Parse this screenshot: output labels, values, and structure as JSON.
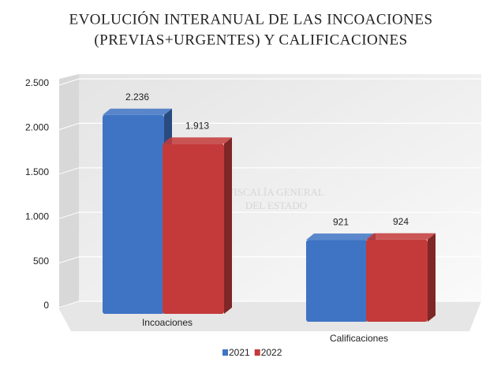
{
  "chart_data": {
    "type": "bar3d",
    "title": [
      "EVOLUCIÓN INTERANUAL DE LAS INCOACIONES",
      "(PREVIAS+URGENTES) Y CALIFICACIONES"
    ],
    "watermark": [
      "FISCALÍA GENERAL",
      "DEL ESTADO"
    ],
    "categories": [
      "Incoaciones",
      "Calificaciones"
    ],
    "series": [
      {
        "name": "2021",
        "color": "#3f74c4",
        "values": [
          2236,
          921
        ],
        "value_labels": [
          "2.236",
          "921"
        ]
      },
      {
        "name": "2022",
        "color": "#c43a3a",
        "values": [
          1913,
          924
        ],
        "value_labels": [
          "1.913",
          "924"
        ]
      }
    ],
    "ylim": [
      0,
      2500
    ],
    "yticks": [
      0,
      500,
      {
        "value": 1000,
        "label": "1.000"
      },
      {
        "value": 1500,
        "label": "1.500"
      },
      {
        "value": 2000,
        "label": "2.000"
      },
      {
        "value": 2500,
        "label": "2.500"
      }
    ],
    "grid": true,
    "legend": "bottom"
  }
}
